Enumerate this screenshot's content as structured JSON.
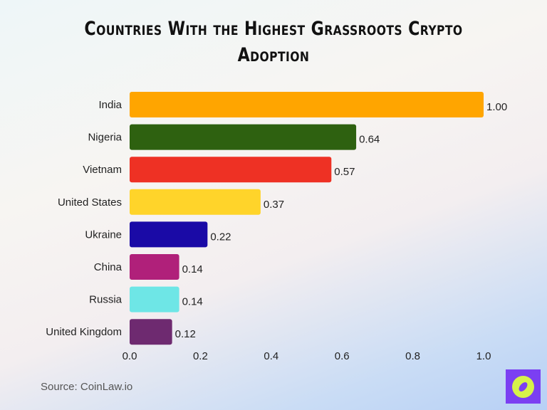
{
  "chart_data": {
    "type": "bar",
    "orientation": "horizontal",
    "title": "Countries With the Highest Grassroots Crypto Adoption",
    "categories": [
      "India",
      "Nigeria",
      "Vietnam",
      "United States",
      "Ukraine",
      "China",
      "Russia",
      "United Kingdom"
    ],
    "values": [
      1.0,
      0.64,
      0.57,
      0.37,
      0.22,
      0.14,
      0.14,
      0.12
    ],
    "value_labels": [
      "1.00",
      "0.64",
      "0.57",
      "0.37",
      "0.22",
      "0.14",
      "0.14",
      "0.12"
    ],
    "colors": [
      "#ffa500",
      "#2e6110",
      "#ee3124",
      "#ffd42a",
      "#1a0aa6",
      "#b0207a",
      "#6ee6e6",
      "#6e2a70"
    ],
    "xlim": [
      0,
      1.0
    ],
    "xticks": [
      "0.0",
      "0.2",
      "0.4",
      "0.6",
      "0.8",
      "1.0"
    ],
    "grid": false,
    "xlabel": "",
    "ylabel": ""
  },
  "source": "Source: CoinLaw.io",
  "logo_icon": "compass-icon"
}
